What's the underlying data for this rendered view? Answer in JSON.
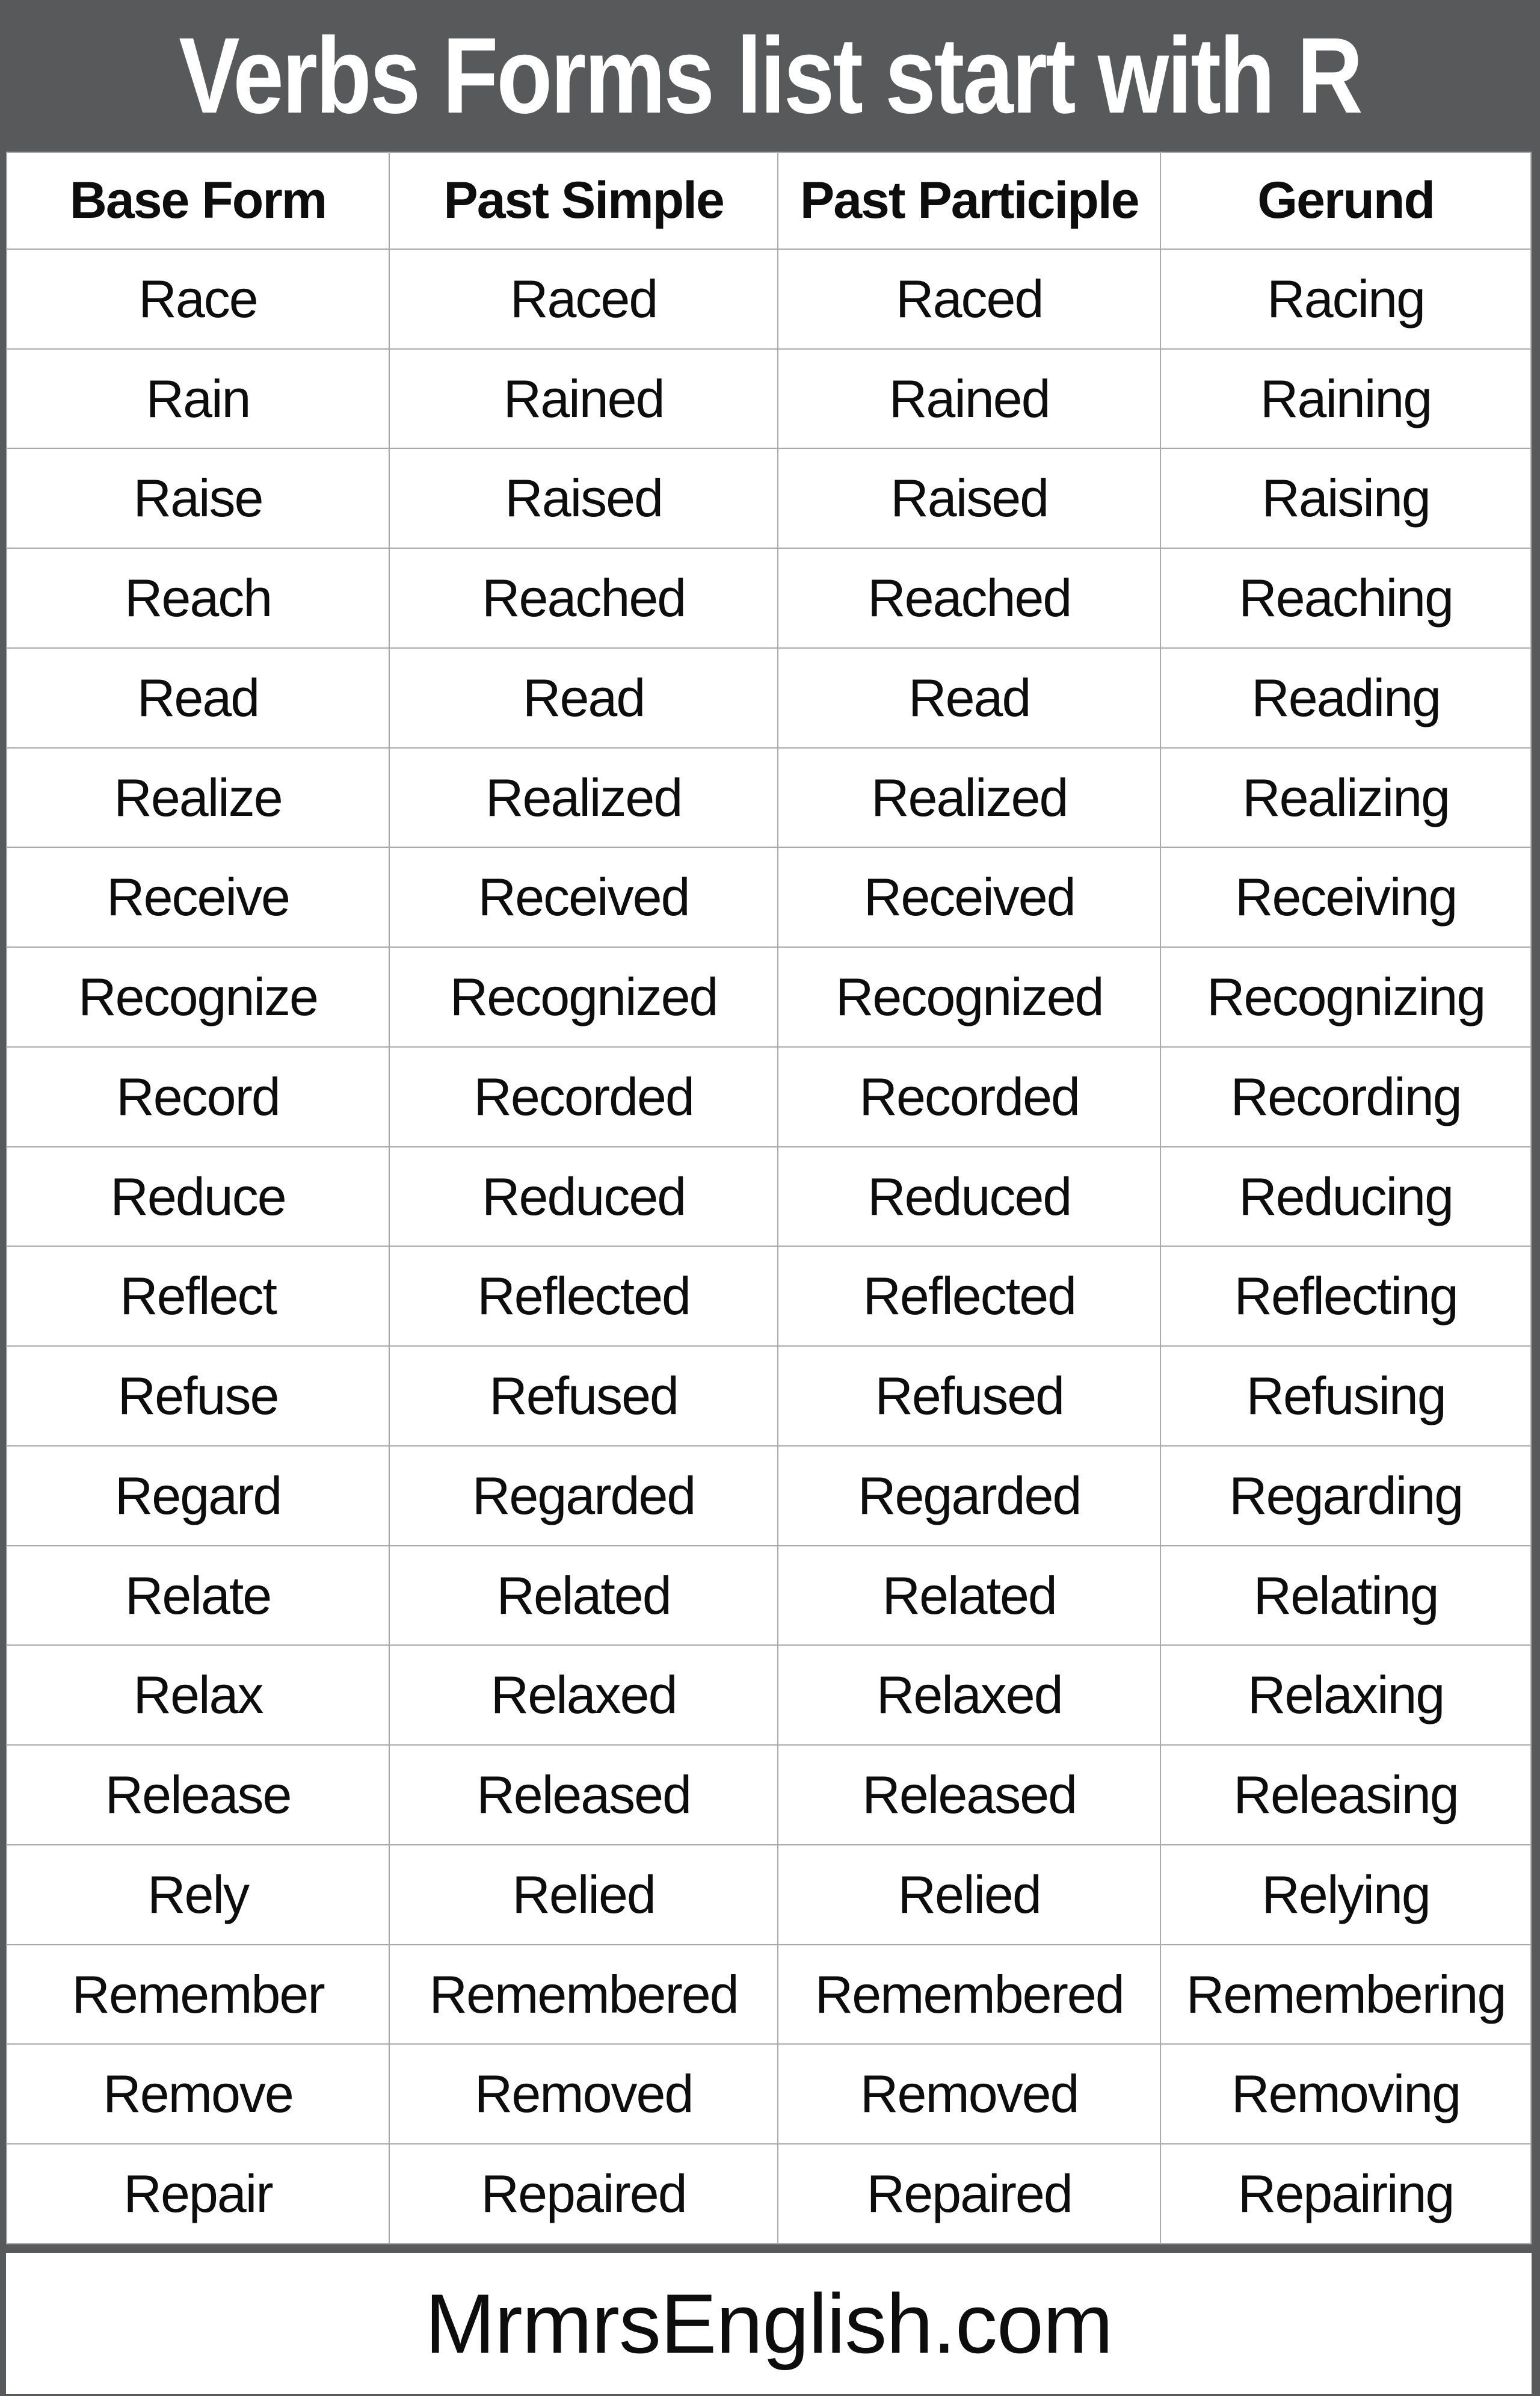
{
  "title": "Verbs Forms list start with R",
  "table": {
    "headers": [
      "Base Form",
      "Past Simple",
      "Past Participle",
      "Gerund"
    ],
    "rows": [
      [
        "Race",
        "Raced",
        "Raced",
        "Racing"
      ],
      [
        "Rain",
        "Rained",
        "Rained",
        "Raining"
      ],
      [
        "Raise",
        "Raised",
        "Raised",
        "Raising"
      ],
      [
        "Reach",
        "Reached",
        "Reached",
        "Reaching"
      ],
      [
        "Read",
        "Read",
        "Read",
        "Reading"
      ],
      [
        "Realize",
        "Realized",
        "Realized",
        "Realizing"
      ],
      [
        "Receive",
        "Received",
        "Received",
        "Receiving"
      ],
      [
        "Recognize",
        "Recognized",
        "Recognized",
        "Recognizing"
      ],
      [
        "Record",
        "Recorded",
        "Recorded",
        "Recording"
      ],
      [
        "Reduce",
        "Reduced",
        "Reduced",
        "Reducing"
      ],
      [
        "Reflect",
        "Reflected",
        "Reflected",
        "Reflecting"
      ],
      [
        "Refuse",
        "Refused",
        "Refused",
        "Refusing"
      ],
      [
        "Regard",
        "Regarded",
        "Regarded",
        "Regarding"
      ],
      [
        "Relate",
        "Related",
        "Related",
        "Relating"
      ],
      [
        "Relax",
        "Relaxed",
        "Relaxed",
        "Relaxing"
      ],
      [
        "Release",
        "Released",
        "Released",
        "Releasing"
      ],
      [
        "Rely",
        "Relied",
        "Relied",
        "Relying"
      ],
      [
        "Remember",
        "Remembered",
        "Remembered",
        "Remembering"
      ],
      [
        "Remove",
        "Removed",
        "Removed",
        "Removing"
      ],
      [
        "Repair",
        "Repaired",
        "Repaired",
        "Repairing"
      ]
    ]
  },
  "footer": {
    "site": "MrmrsEnglish.com"
  },
  "colors": {
    "banner_bg": "#58595b",
    "table_bg": "#ffffff",
    "grid_line": "#a9a9a9",
    "title_text": "#ffffff",
    "body_text": "#0d0d0d"
  }
}
